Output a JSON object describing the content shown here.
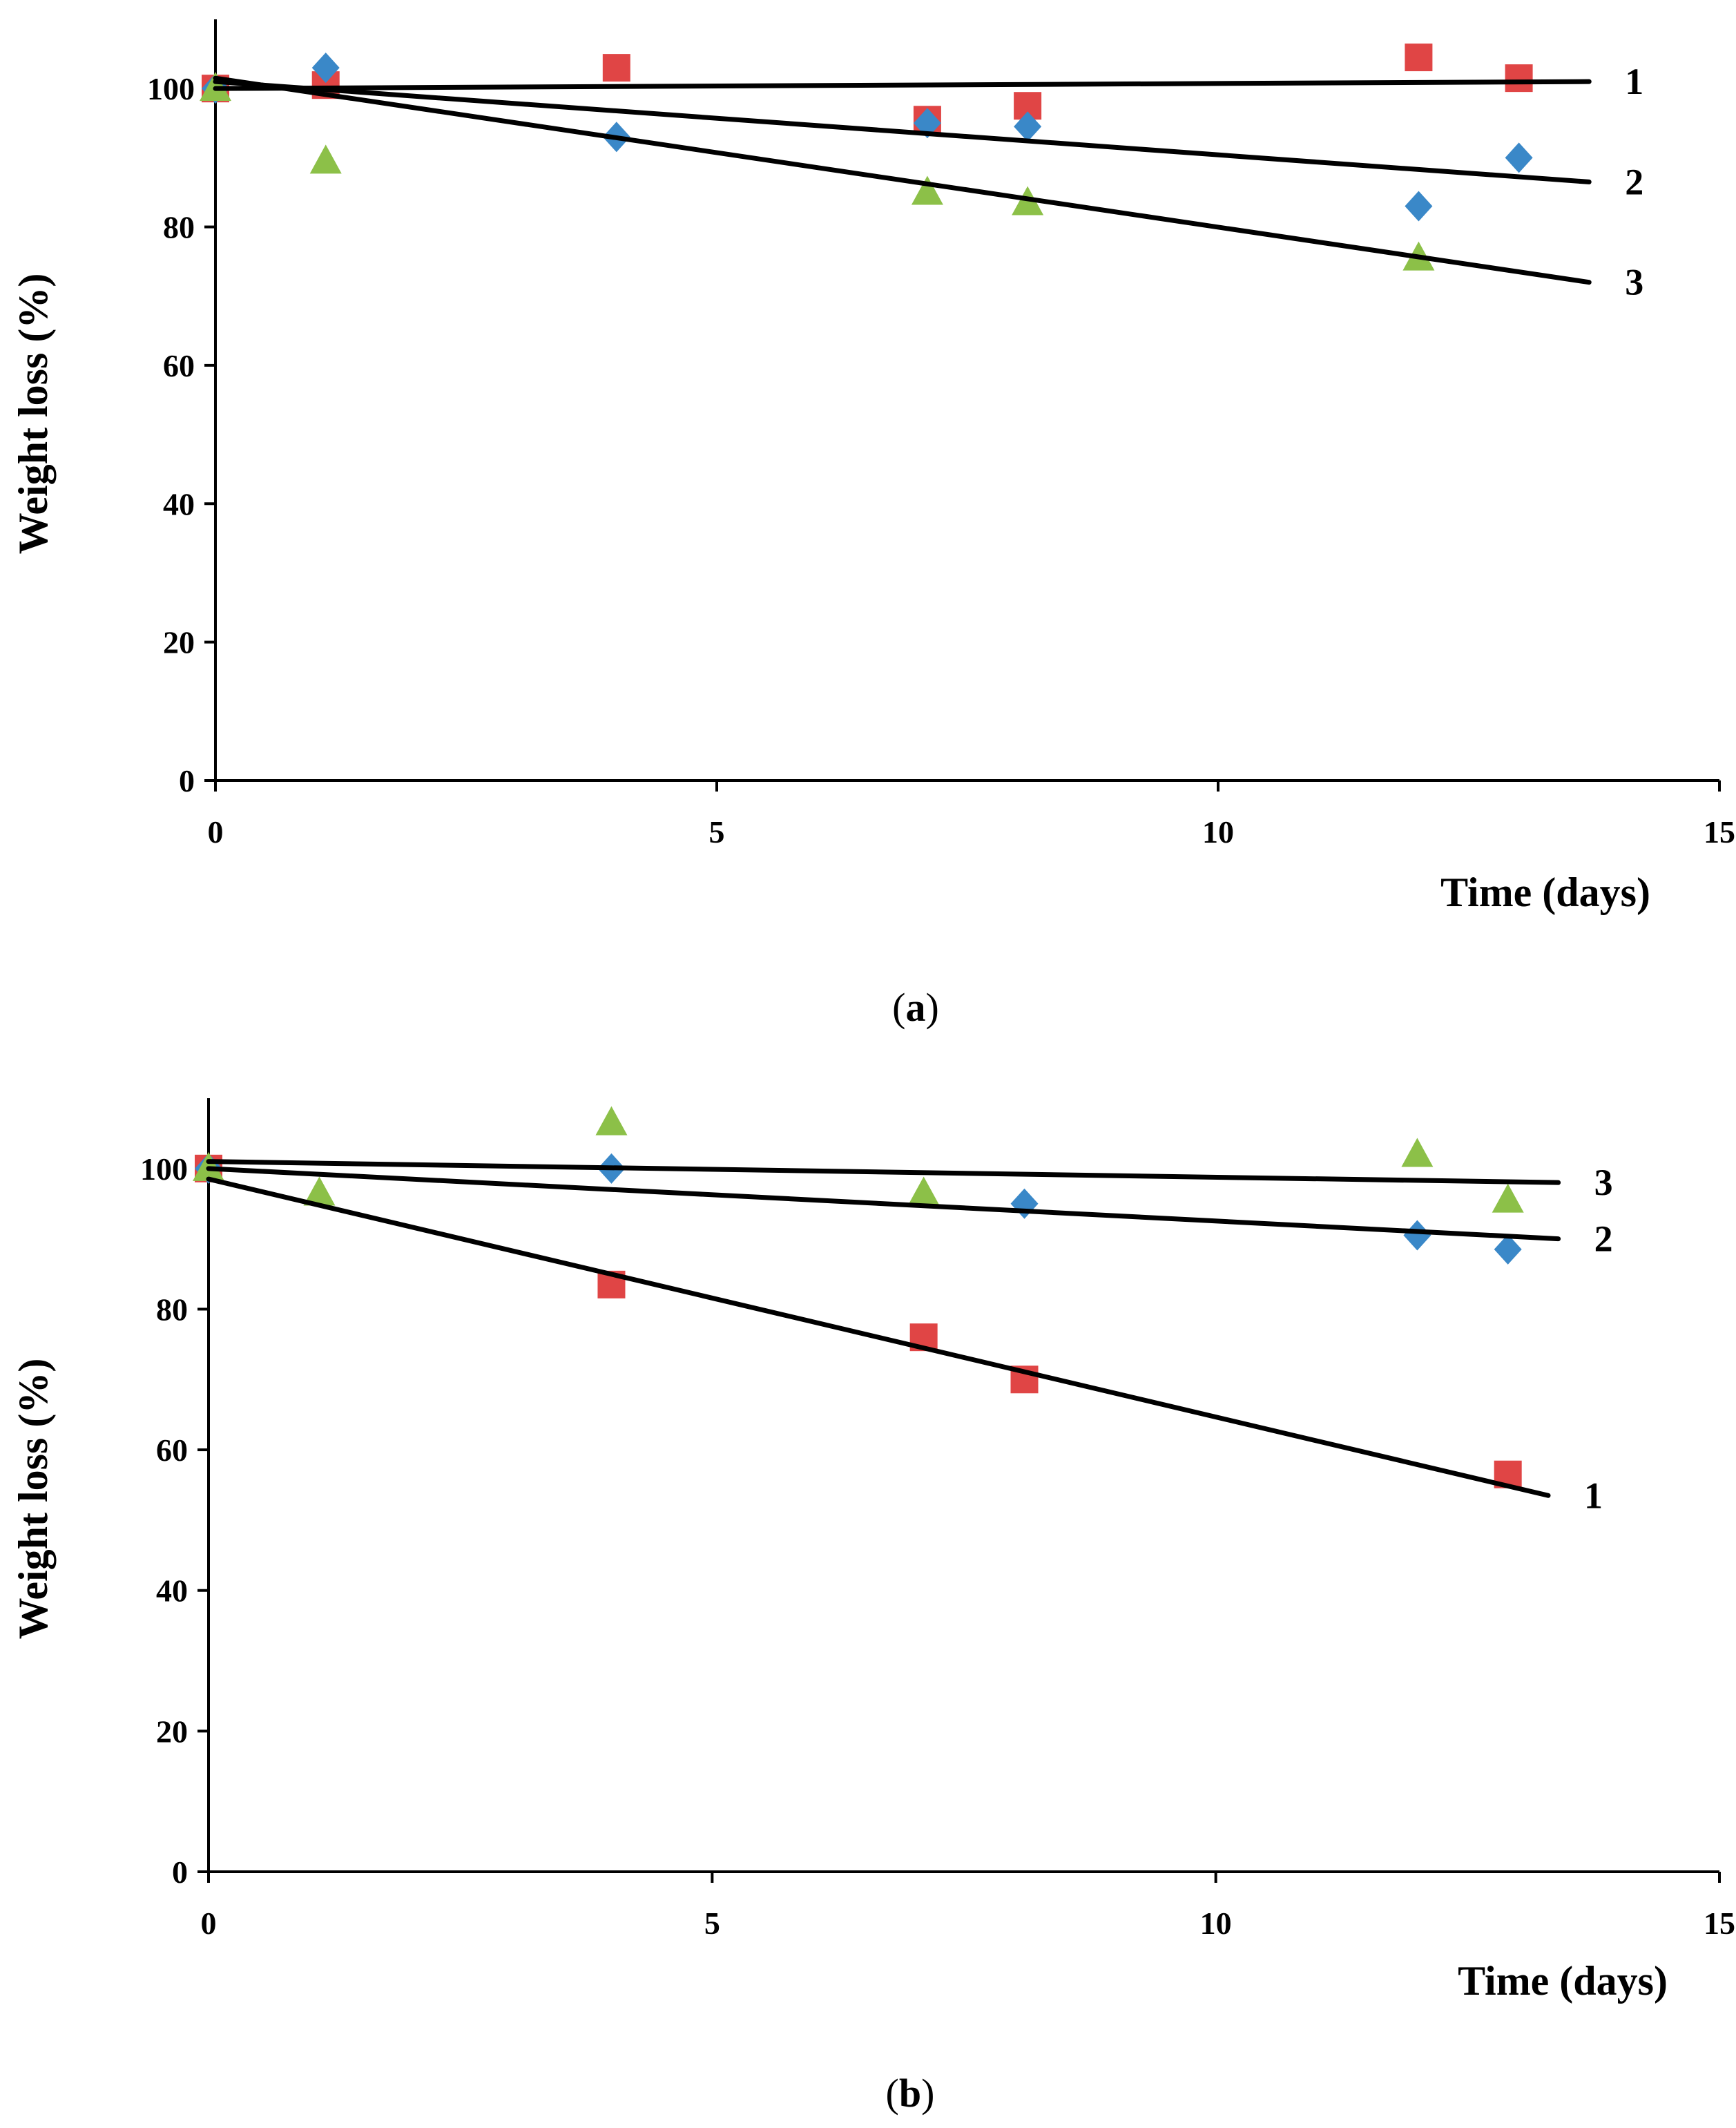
{
  "figure": {
    "panels": [
      "a",
      "b"
    ]
  },
  "colors": {
    "square": "#e04545",
    "diamond": "#3a88c8",
    "triangle": "#8cc048",
    "line": "#000000"
  },
  "chart_data": [
    {
      "type": "scatter",
      "id": "a",
      "caption_open": "(",
      "caption_letter": "a",
      "caption_close": ")",
      "title": "",
      "xlabel": "Time (days)",
      "ylabel": "Weight loss (%)",
      "xlim": [
        0,
        15
      ],
      "ylim": [
        0,
        110
      ],
      "xticks": [
        "0",
        "5",
        "10",
        "15"
      ],
      "yticks": [
        "0",
        "20",
        "40",
        "60",
        "80",
        "100"
      ],
      "grid": false,
      "series": [
        {
          "name": "squares",
          "marker": "square",
          "x": [
            0,
            1.1,
            4.0,
            7.1,
            8.1,
            12.0,
            13.0
          ],
          "y": [
            100,
            100.5,
            103,
            95.5,
            97.5,
            104.5,
            101.5
          ]
        },
        {
          "name": "diamonds",
          "marker": "diamond",
          "x": [
            0,
            1.1,
            4.0,
            7.1,
            8.1,
            12.0,
            13.0
          ],
          "y": [
            100,
            103,
            93,
            95,
            94.5,
            83,
            90
          ]
        },
        {
          "name": "triangles",
          "marker": "triangle",
          "x": [
            0,
            1.1,
            7.1,
            8.1,
            12.0
          ],
          "y": [
            100,
            89.5,
            85,
            83.5,
            75.5
          ]
        }
      ],
      "trendlines": [
        {
          "label": "1",
          "x": [
            0,
            13.7
          ],
          "y": [
            100.0,
            101.0
          ]
        },
        {
          "label": "2",
          "x": [
            0,
            13.7
          ],
          "y": [
            101.0,
            86.5
          ]
        },
        {
          "label": "3",
          "x": [
            0,
            13.7
          ],
          "y": [
            101.5,
            72.0
          ]
        }
      ]
    },
    {
      "type": "scatter",
      "id": "b",
      "caption_open": "(",
      "caption_letter": "b",
      "caption_close": ")",
      "title": "",
      "xlabel": "Time (days)",
      "ylabel": "Weight loss (%)",
      "xlim": [
        0,
        15
      ],
      "ylim": [
        0,
        110
      ],
      "xticks": [
        "0",
        "5",
        "10",
        "15"
      ],
      "yticks": [
        "0",
        "20",
        "40",
        "60",
        "80",
        "100"
      ],
      "grid": false,
      "series": [
        {
          "name": "squares",
          "marker": "square",
          "x": [
            0,
            4.0,
            7.1,
            8.1,
            12.9
          ],
          "y": [
            100,
            83.5,
            76,
            70,
            56.5
          ]
        },
        {
          "name": "diamonds",
          "marker": "diamond",
          "x": [
            0,
            4.0,
            8.1,
            12.0,
            12.9
          ],
          "y": [
            100,
            100,
            95,
            90.5,
            88.5
          ]
        },
        {
          "name": "triangles",
          "marker": "triangle",
          "x": [
            0,
            1.1,
            4.0,
            7.1,
            12.0,
            12.9
          ],
          "y": [
            100,
            96.5,
            106.5,
            96.5,
            102,
            95.5
          ]
        }
      ],
      "trendlines": [
        {
          "label": "3",
          "x": [
            0,
            13.4
          ],
          "y": [
            101.0,
            98.0
          ]
        },
        {
          "label": "2",
          "x": [
            0,
            13.4
          ],
          "y": [
            100.0,
            90.0
          ]
        },
        {
          "label": "1",
          "x": [
            0,
            13.3
          ],
          "y": [
            98.5,
            53.5
          ]
        }
      ]
    }
  ]
}
